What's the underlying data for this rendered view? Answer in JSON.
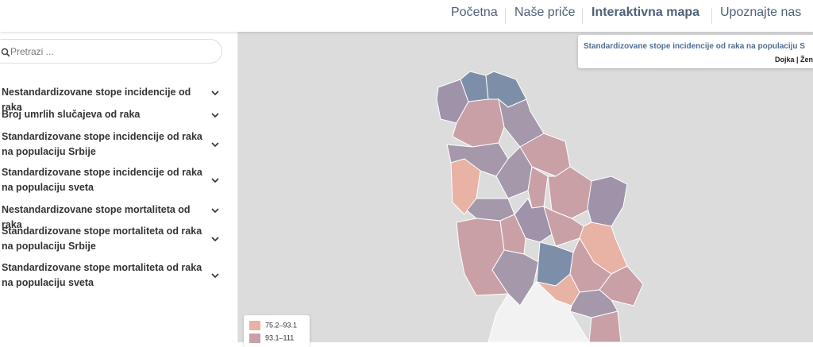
{
  "nav": {
    "links": [
      "Početna",
      "Naše priče",
      "Interaktivna mapa",
      "Upoznajte nas"
    ],
    "active": 2
  },
  "sidebar": {
    "search_placeholder": "Pretrazi ...",
    "items": [
      "Nestandardizovane stope incidencije od raka",
      "Broj umrlih slučajeva od raka",
      "Standardizovane stope incidencije od raka na populaciju Srbije",
      "Standardizovane stope incidencije od raka na populaciju sveta",
      "Nestandardizovane stope mortaliteta od raka",
      "Standardizovane stope mortaliteta od raka na populaciju Srbije",
      "Standardizovane stope mortaliteta od raka na populaciju sveta"
    ]
  },
  "map": {
    "info_title": "Standardizovane stope incidencije od raka na populaciju S",
    "info_subtitle": "Dojka | Žen",
    "legend": [
      {
        "label": "75.2–93.1",
        "color": "#e8b2a4"
      },
      {
        "label": "93.1–111",
        "color": "#c9a0a8"
      }
    ]
  }
}
